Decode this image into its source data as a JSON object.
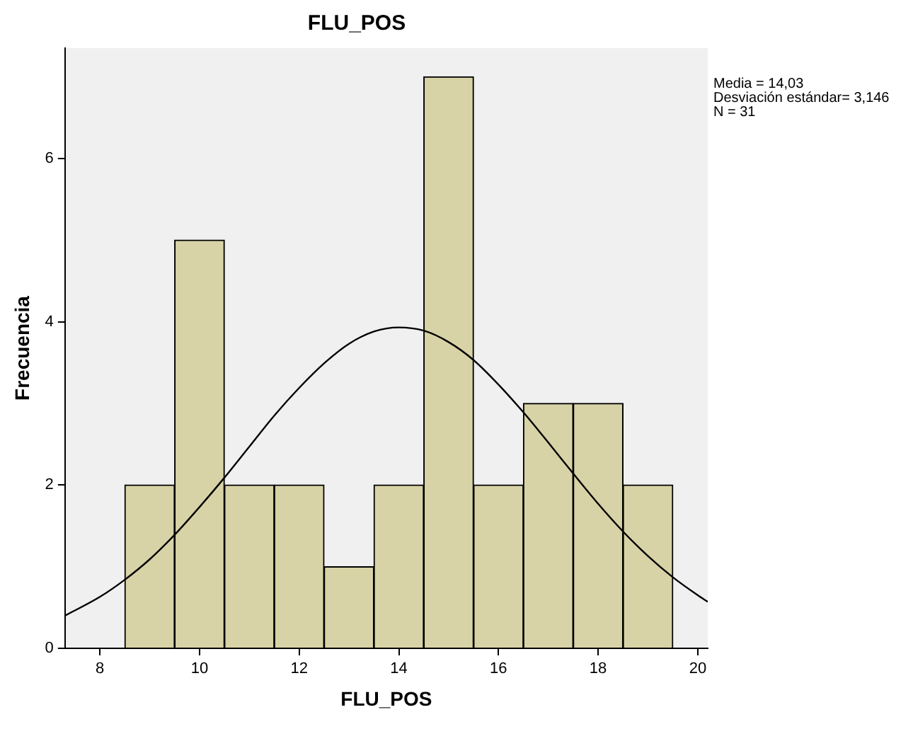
{
  "chart_data": {
    "type": "histogram",
    "title": "FLU_POS",
    "xlabel": "FLU_POS",
    "ylabel": "Frecuencia",
    "series": [
      {
        "type": "histogram",
        "color": "#d8d3a6",
        "bins": [
          8.5,
          9.5,
          10.5,
          11.5,
          12.5,
          13.5,
          14.5,
          15.5,
          16.5,
          17.5,
          18.5,
          19.5
        ],
        "values": [
          2,
          5,
          2,
          2,
          1,
          2,
          7,
          2,
          3,
          3,
          2
        ]
      },
      {
        "type": "line",
        "color": "#000000",
        "marker": "none",
        "x": [
          7.3,
          8,
          8.5,
          9,
          9.5,
          10,
          10.5,
          11,
          11.5,
          12,
          12.5,
          13,
          13.5,
          14,
          14.5,
          15,
          15.5,
          16,
          16.5,
          17,
          17.5,
          18,
          18.5,
          19,
          19.5,
          20,
          20.2
        ],
        "values": [
          0.4,
          0.63,
          0.84,
          1.09,
          1.39,
          1.73,
          2.09,
          2.47,
          2.85,
          3.19,
          3.49,
          3.73,
          3.88,
          3.93,
          3.89,
          3.75,
          3.53,
          3.23,
          2.89,
          2.52,
          2.14,
          1.77,
          1.43,
          1.13,
          0.87,
          0.65,
          0.57
        ]
      }
    ],
    "xlim": [
      7.3,
      20.2
    ],
    "ylim": [
      0,
      7.35
    ],
    "xticks": [
      8,
      10,
      12,
      14,
      16,
      18,
      20
    ],
    "yticks": [
      0,
      2,
      4,
      6
    ],
    "annotations": [
      "Media = 14,03",
      "Desviación estándar= 3,146",
      "N = 31"
    ]
  }
}
